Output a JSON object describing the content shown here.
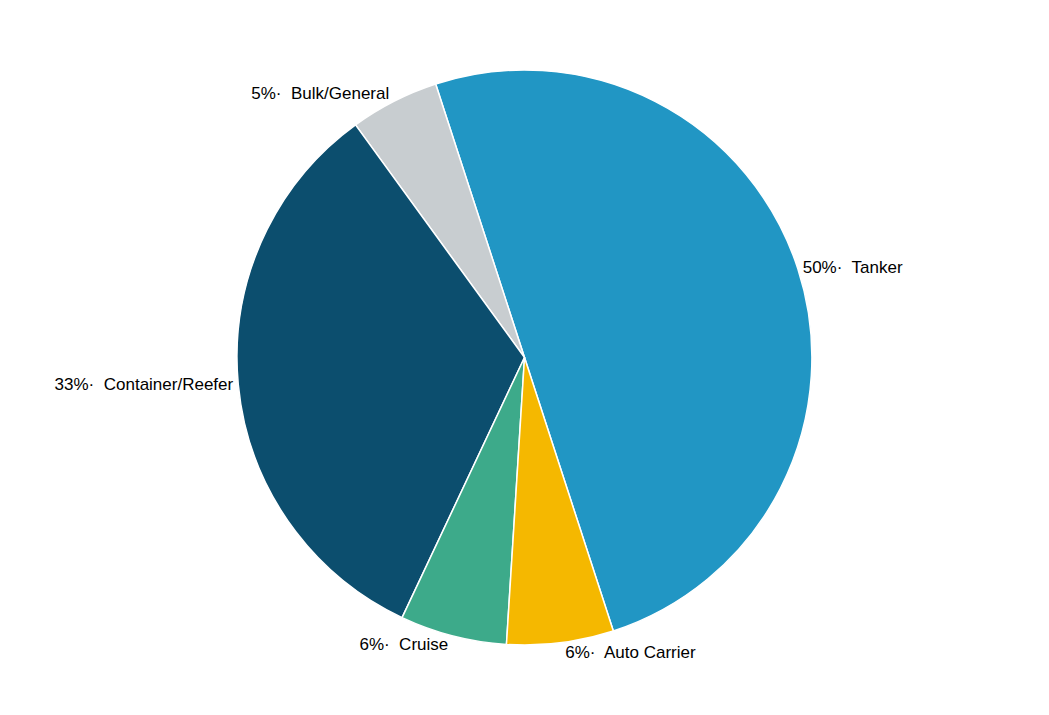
{
  "chart_data": {
    "type": "pie",
    "values": [
      50,
      5,
      33,
      6,
      6
    ],
    "value_labels": [
      "50%·  Tanker",
      "5%·  Bulk/General",
      "33%·  Container/Reefer",
      "6%·  Cruise",
      "6%·  Auto Carrier"
    ],
    "colors": [
      "#2196C4",
      "#C8CDD0",
      "#0C4E6E",
      "#3DAA8A",
      "#F5B800"
    ],
    "data_labels": true
  }
}
